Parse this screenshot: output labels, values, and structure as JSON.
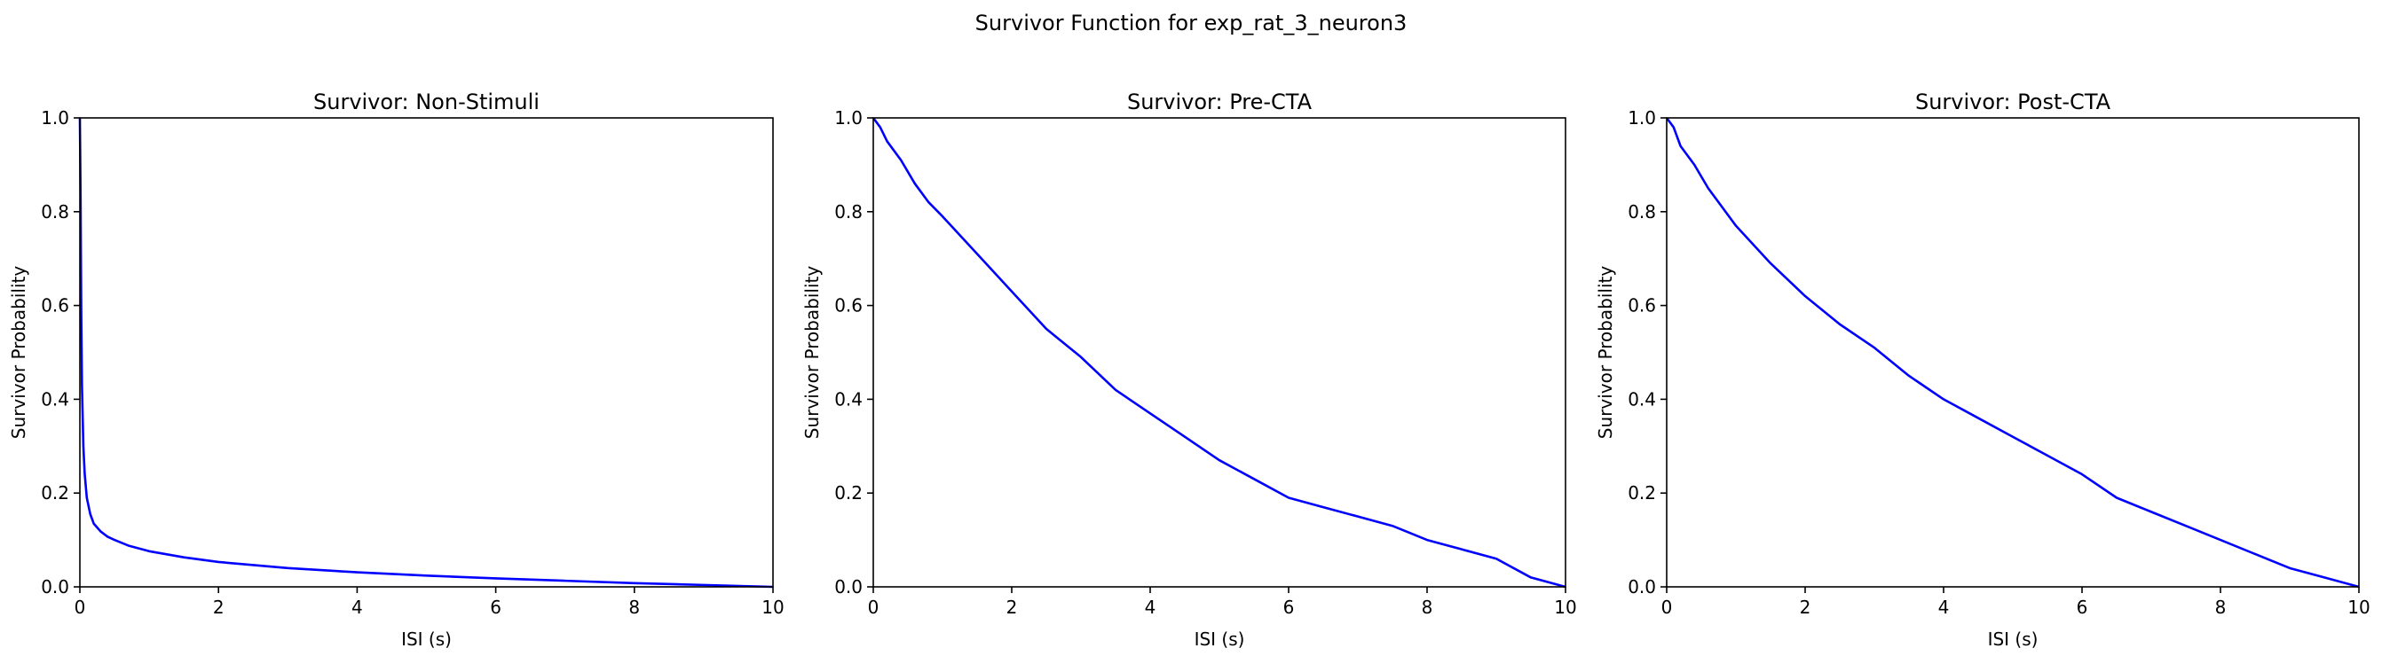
{
  "figure": {
    "suptitle": "Survivor Function for exp_rat_3_neuron3"
  },
  "style": {
    "line_color": "#0000ff",
    "axes_color": "#000000",
    "background": "#ffffff"
  },
  "chart_data": [
    {
      "type": "line",
      "title": "Survivor: Non-Stimuli",
      "xlabel": "ISI (s)",
      "ylabel": "Survivor Probability",
      "xlim": [
        0,
        10
      ],
      "ylim": [
        0,
        1
      ],
      "xticks": [
        "0",
        "2",
        "4",
        "6",
        "8",
        "10"
      ],
      "yticks": [
        "0.0",
        "0.2",
        "0.4",
        "0.6",
        "0.8",
        "1.0"
      ],
      "grid": false,
      "series": [
        {
          "x": [
            0,
            0.01,
            0.02,
            0.03,
            0.05,
            0.07,
            0.1,
            0.15,
            0.2,
            0.3,
            0.4,
            0.5,
            0.7,
            1.0,
            1.5,
            2,
            3,
            4,
            5,
            6,
            7,
            8,
            9,
            10
          ],
          "y": [
            1.0,
            0.84,
            0.58,
            0.43,
            0.3,
            0.24,
            0.19,
            0.155,
            0.135,
            0.118,
            0.107,
            0.1,
            0.088,
            0.076,
            0.063,
            0.053,
            0.04,
            0.031,
            0.024,
            0.018,
            0.013,
            0.008,
            0.004,
            0.0
          ]
        }
      ]
    },
    {
      "type": "line",
      "title": "Survivor: Pre-CTA",
      "xlabel": "ISI (s)",
      "ylabel": "Survivor Probability",
      "xlim": [
        0,
        10
      ],
      "ylim": [
        0,
        1
      ],
      "xticks": [
        "0",
        "2",
        "4",
        "6",
        "8",
        "10"
      ],
      "yticks": [
        "0.0",
        "0.2",
        "0.4",
        "0.6",
        "0.8",
        "1.0"
      ],
      "grid": false,
      "series": [
        {
          "x": [
            0,
            0.1,
            0.2,
            0.4,
            0.6,
            0.8,
            1.0,
            1.5,
            2.0,
            2.5,
            3.0,
            3.5,
            4.0,
            4.5,
            5.0,
            5.5,
            6.0,
            6.5,
            7.0,
            7.5,
            8.0,
            8.5,
            9.0,
            9.5,
            10.0
          ],
          "y": [
            1.0,
            0.98,
            0.95,
            0.91,
            0.86,
            0.82,
            0.79,
            0.71,
            0.63,
            0.55,
            0.49,
            0.42,
            0.37,
            0.32,
            0.27,
            0.23,
            0.19,
            0.17,
            0.15,
            0.13,
            0.1,
            0.08,
            0.06,
            0.02,
            0.0
          ]
        }
      ]
    },
    {
      "type": "line",
      "title": "Survivor: Post-CTA",
      "xlabel": "ISI (s)",
      "ylabel": "Survivor Probability",
      "xlim": [
        0,
        10
      ],
      "ylim": [
        0,
        1
      ],
      "xticks": [
        "0",
        "2",
        "4",
        "6",
        "8",
        "10"
      ],
      "yticks": [
        "0.0",
        "0.2",
        "0.4",
        "0.6",
        "0.8",
        "1.0"
      ],
      "grid": false,
      "series": [
        {
          "x": [
            0,
            0.1,
            0.2,
            0.4,
            0.6,
            0.8,
            1.0,
            1.5,
            2.0,
            2.5,
            3.0,
            3.5,
            4.0,
            4.5,
            5.0,
            5.5,
            6.0,
            6.5,
            7.0,
            7.5,
            8.0,
            8.5,
            9.0,
            9.5,
            10.0
          ],
          "y": [
            1.0,
            0.98,
            0.94,
            0.9,
            0.85,
            0.81,
            0.77,
            0.69,
            0.62,
            0.56,
            0.51,
            0.45,
            0.4,
            0.36,
            0.32,
            0.28,
            0.24,
            0.19,
            0.16,
            0.13,
            0.1,
            0.07,
            0.04,
            0.02,
            0.0
          ]
        }
      ]
    }
  ]
}
